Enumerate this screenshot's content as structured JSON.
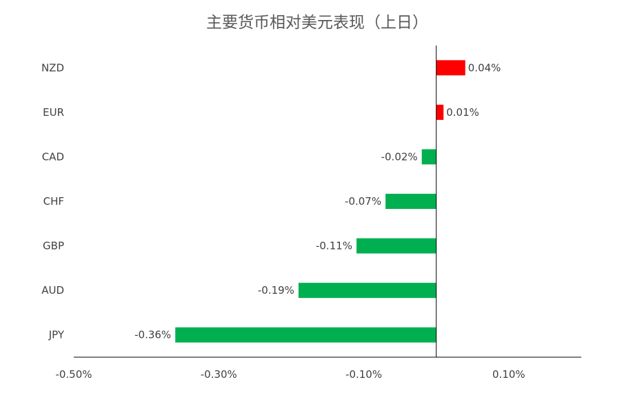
{
  "chart_data": {
    "type": "bar",
    "orientation": "horizontal",
    "title": "主要货币相对美元表现（上日）",
    "categories": [
      "NZD",
      "EUR",
      "CAD",
      "CHF",
      "GBP",
      "AUD",
      "JPY"
    ],
    "values": [
      0.04,
      0.01,
      -0.02,
      -0.07,
      -0.11,
      -0.19,
      -0.36
    ],
    "value_labels": [
      "0.04%",
      "0.01%",
      "-0.02%",
      "-0.07%",
      "-0.11%",
      "-0.19%",
      "-0.36%"
    ],
    "xlim": [
      -0.5,
      0.2
    ],
    "xticks": [
      -0.5,
      -0.3,
      -0.1,
      0.1
    ],
    "xtick_labels": [
      "-0.50%",
      "-0.30%",
      "-0.10%",
      "0.10%"
    ],
    "xlabel": "",
    "ylabel": "",
    "grid": false,
    "legend": "none",
    "colors": {
      "positive": "#FF0000",
      "negative": "#00B050",
      "axis": "#000000",
      "text": "#404040",
      "title": "#595959"
    }
  }
}
